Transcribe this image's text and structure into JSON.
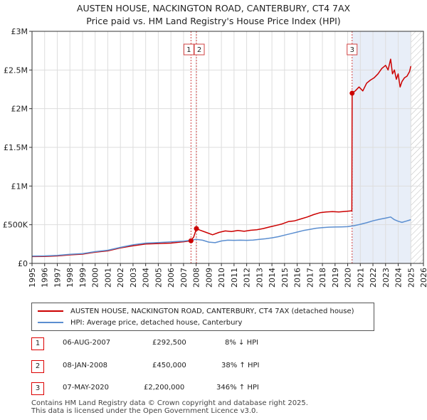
{
  "title_line1": "AUSTEN HOUSE, NACKINGTON ROAD, CANTERBURY, CT4 7AX",
  "title_line2": "Price paid vs. HM Land Registry's House Price Index (HPI)",
  "colors": {
    "property": "#cc0000",
    "hpi": "#5b8ed0",
    "marker_line": "#d04040",
    "shade": "#e8eef8",
    "hatch": "#bbbbbb",
    "grid": "#dddddd"
  },
  "chart_data": {
    "type": "line",
    "title": "AUSTEN HOUSE, NACKINGTON ROAD, CANTERBURY, CT4 7AX",
    "subtitle": "Price paid vs. HM Land Registry's House Price Index (HPI)",
    "xlim": [
      1995,
      2026
    ],
    "ylim": [
      0,
      3000000
    ],
    "x_ticks": [
      1995,
      1996,
      1997,
      1998,
      1999,
      2000,
      2001,
      2002,
      2003,
      2004,
      2005,
      2006,
      2007,
      2008,
      2009,
      2010,
      2011,
      2012,
      2013,
      2014,
      2015,
      2016,
      2017,
      2018,
      2019,
      2020,
      2021,
      2022,
      2023,
      2024,
      2025,
      2026
    ],
    "y_ticks": [
      {
        "value": 0,
        "label": "£0"
      },
      {
        "value": 500000,
        "label": "£500K"
      },
      {
        "value": 1000000,
        "label": "£1M"
      },
      {
        "value": 1500000,
        "label": "£1.5M"
      },
      {
        "value": 2000000,
        "label": "£2M"
      },
      {
        "value": 2500000,
        "label": "£2.5M"
      },
      {
        "value": 3000000,
        "label": "£3M"
      }
    ],
    "grid": true,
    "shaded_range": [
      2020.35,
      2025.0
    ],
    "hatched_range": [
      2025.0,
      2026.0
    ],
    "series": [
      {
        "name": "AUSTEN HOUSE, NACKINGTON ROAD, CANTERBURY, CT4 7AX (detached house)",
        "color_key": "property",
        "points": [
          [
            1995.0,
            88000
          ],
          [
            1996.0,
            90000
          ],
          [
            1997.0,
            97000
          ],
          [
            1998.0,
            110000
          ],
          [
            1999.0,
            120000
          ],
          [
            2000.0,
            145000
          ],
          [
            2001.0,
            162000
          ],
          [
            2002.0,
            200000
          ],
          [
            2003.0,
            228000
          ],
          [
            2004.0,
            250000
          ],
          [
            2005.0,
            257000
          ],
          [
            2006.0,
            262000
          ],
          [
            2007.0,
            280000
          ],
          [
            2007.59,
            292500
          ],
          [
            2007.6,
            300000
          ],
          [
            2007.8,
            340000
          ],
          [
            2008.02,
            450000
          ],
          [
            2008.3,
            430000
          ],
          [
            2008.8,
            400000
          ],
          [
            2009.3,
            370000
          ],
          [
            2009.8,
            400000
          ],
          [
            2010.3,
            420000
          ],
          [
            2010.8,
            412000
          ],
          [
            2011.3,
            425000
          ],
          [
            2011.8,
            415000
          ],
          [
            2012.3,
            428000
          ],
          [
            2012.8,
            435000
          ],
          [
            2013.3,
            450000
          ],
          [
            2013.8,
            470000
          ],
          [
            2014.3,
            490000
          ],
          [
            2014.8,
            510000
          ],
          [
            2015.3,
            540000
          ],
          [
            2015.8,
            550000
          ],
          [
            2016.3,
            575000
          ],
          [
            2016.8,
            600000
          ],
          [
            2017.3,
            630000
          ],
          [
            2017.8,
            655000
          ],
          [
            2018.3,
            665000
          ],
          [
            2018.8,
            670000
          ],
          [
            2019.3,
            665000
          ],
          [
            2019.8,
            672000
          ],
          [
            2020.33,
            680000
          ],
          [
            2020.35,
            2200000
          ],
          [
            2020.6,
            2230000
          ],
          [
            2020.9,
            2280000
          ],
          [
            2021.2,
            2230000
          ],
          [
            2021.5,
            2330000
          ],
          [
            2021.8,
            2370000
          ],
          [
            2022.1,
            2400000
          ],
          [
            2022.4,
            2450000
          ],
          [
            2022.7,
            2520000
          ],
          [
            2023.0,
            2560000
          ],
          [
            2023.2,
            2500000
          ],
          [
            2023.4,
            2640000
          ],
          [
            2023.55,
            2450000
          ],
          [
            2023.7,
            2500000
          ],
          [
            2023.85,
            2380000
          ],
          [
            2024.0,
            2450000
          ],
          [
            2024.15,
            2280000
          ],
          [
            2024.3,
            2350000
          ],
          [
            2024.5,
            2400000
          ],
          [
            2024.7,
            2420000
          ],
          [
            2024.9,
            2480000
          ],
          [
            2025.0,
            2550000
          ]
        ]
      },
      {
        "name": "HPI: Average price, detached house, Canterbury",
        "color_key": "hpi",
        "points": [
          [
            1995.0,
            95000
          ],
          [
            1996.0,
            97000
          ],
          [
            1997.0,
            104000
          ],
          [
            1998.0,
            117000
          ],
          [
            1999.0,
            126000
          ],
          [
            2000.0,
            152000
          ],
          [
            2001.0,
            170000
          ],
          [
            2002.0,
            207000
          ],
          [
            2003.0,
            240000
          ],
          [
            2004.0,
            262000
          ],
          [
            2005.0,
            270000
          ],
          [
            2006.0,
            278000
          ],
          [
            2007.0,
            288000
          ],
          [
            2007.6,
            300000
          ],
          [
            2008.0,
            310000
          ],
          [
            2008.5,
            300000
          ],
          [
            2009.0,
            275000
          ],
          [
            2009.5,
            268000
          ],
          [
            2010.0,
            290000
          ],
          [
            2010.5,
            300000
          ],
          [
            2011.0,
            298000
          ],
          [
            2011.5,
            300000
          ],
          [
            2012.0,
            298000
          ],
          [
            2012.5,
            302000
          ],
          [
            2013.0,
            310000
          ],
          [
            2013.5,
            318000
          ],
          [
            2014.0,
            330000
          ],
          [
            2014.5,
            345000
          ],
          [
            2015.0,
            365000
          ],
          [
            2015.5,
            385000
          ],
          [
            2016.0,
            405000
          ],
          [
            2016.5,
            425000
          ],
          [
            2017.0,
            440000
          ],
          [
            2017.5,
            455000
          ],
          [
            2018.0,
            462000
          ],
          [
            2018.5,
            468000
          ],
          [
            2019.0,
            470000
          ],
          [
            2019.5,
            472000
          ],
          [
            2020.0,
            475000
          ],
          [
            2020.5,
            488000
          ],
          [
            2021.0,
            505000
          ],
          [
            2021.5,
            525000
          ],
          [
            2022.0,
            550000
          ],
          [
            2022.5,
            570000
          ],
          [
            2023.0,
            585000
          ],
          [
            2023.4,
            600000
          ],
          [
            2023.7,
            565000
          ],
          [
            2024.0,
            545000
          ],
          [
            2024.3,
            530000
          ],
          [
            2024.6,
            545000
          ],
          [
            2025.0,
            565000
          ]
        ]
      }
    ],
    "sales": [
      {
        "label": "1",
        "x": 2007.59,
        "y": 292500
      },
      {
        "label": "2",
        "x": 2008.02,
        "y": 450000
      },
      {
        "label": "3",
        "x": 2020.35,
        "y": 2200000
      }
    ]
  },
  "legend": {
    "property_label": "AUSTEN HOUSE, NACKINGTON ROAD, CANTERBURY, CT4 7AX (detached house)",
    "hpi_label": "HPI: Average price, detached house, Canterbury"
  },
  "transactions": [
    {
      "num": "1",
      "date": "06-AUG-2007",
      "price": "£292,500",
      "hpi": "8% ↓ HPI"
    },
    {
      "num": "2",
      "date": "08-JAN-2008",
      "price": "£450,000",
      "hpi": "38% ↑ HPI"
    },
    {
      "num": "3",
      "date": "07-MAY-2020",
      "price": "£2,200,000",
      "hpi": "346% ↑ HPI"
    }
  ],
  "footer": {
    "line1": "Contains HM Land Registry data © Crown copyright and database right 2025.",
    "line2": "This data is licensed under the Open Government Licence v3.0."
  }
}
